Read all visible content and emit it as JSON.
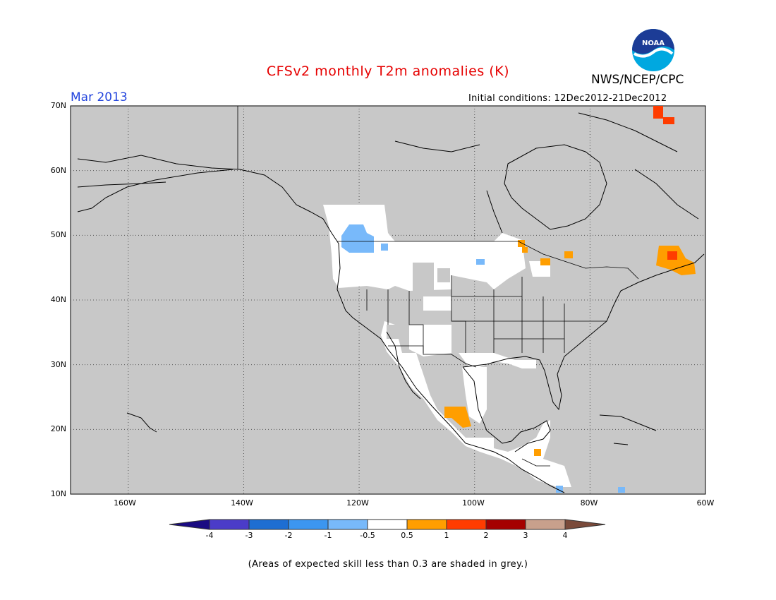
{
  "header": {
    "title": "CFSv2 monthly T2m anomalies (K)",
    "organization": "NWS/NCEP/CPC",
    "logo_text": "NOAA",
    "target_month": "Mar 2013",
    "initial_conditions": "Initial conditions: 12Dec2012-21Dec2012"
  },
  "map": {
    "lon_range": [
      -170,
      -60
    ],
    "lat_range": [
      10,
      70
    ],
    "lat_labels": [
      "70N",
      "60N",
      "50N",
      "40N",
      "30N",
      "20N",
      "10N"
    ],
    "lon_labels": [
      "160W",
      "140W",
      "120W",
      "100W",
      "80W",
      "60W"
    ],
    "background_color": "#c8c8c8"
  },
  "colorbar": {
    "labels": [
      "-4",
      "-3",
      "-2",
      "-1",
      "-0.5",
      "0.5",
      "1",
      "2",
      "3",
      "4"
    ],
    "colors": [
      "#1a0b82",
      "#4b3cc8",
      "#1e6ed2",
      "#3c96f0",
      "#78b9fa",
      "#ffffff",
      "#ff9e00",
      "#ff3c00",
      "#a50000",
      "#c8a08c",
      "#7a4a3a"
    ]
  },
  "footer": {
    "note": "(Areas of expected skill less than 0.3 are shaded in grey.)"
  }
}
